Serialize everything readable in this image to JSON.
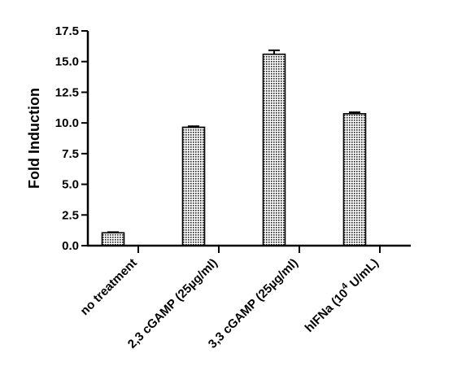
{
  "chart_data": {
    "type": "bar",
    "categories": [
      "no treatment",
      "2,3 cGAMP (25µg/ml)",
      "3,3 cGAMP (25µg/ml)",
      "hIFNa (10^4 U/mL)"
    ],
    "category_labels": [
      {
        "text": "no treatment"
      },
      {
        "text": "2,3 cGAMP (25µg/ml)"
      },
      {
        "text": "3,3 cGAMP (25µg/ml)"
      },
      {
        "text": "hIFNa (10",
        "sup": "4",
        "after": " U/mL)"
      }
    ],
    "values": [
      1.05,
      9.65,
      15.6,
      10.75
    ],
    "errors": [
      0.05,
      0.08,
      0.32,
      0.12
    ],
    "ylabel": "Fold Induction",
    "xlabel": "",
    "ylim": [
      0,
      17.5
    ],
    "yticks": [
      0.0,
      2.5,
      5.0,
      7.5,
      10.0,
      12.5,
      15.0,
      17.5
    ],
    "ytick_labels": [
      "0.0",
      "2.5",
      "5.0",
      "7.5",
      "10.0",
      "12.5",
      "15.0",
      "17.5"
    ],
    "bar_fill": "dotted-pattern",
    "bar_color": "#000000",
    "grid": false,
    "legend": "none"
  }
}
